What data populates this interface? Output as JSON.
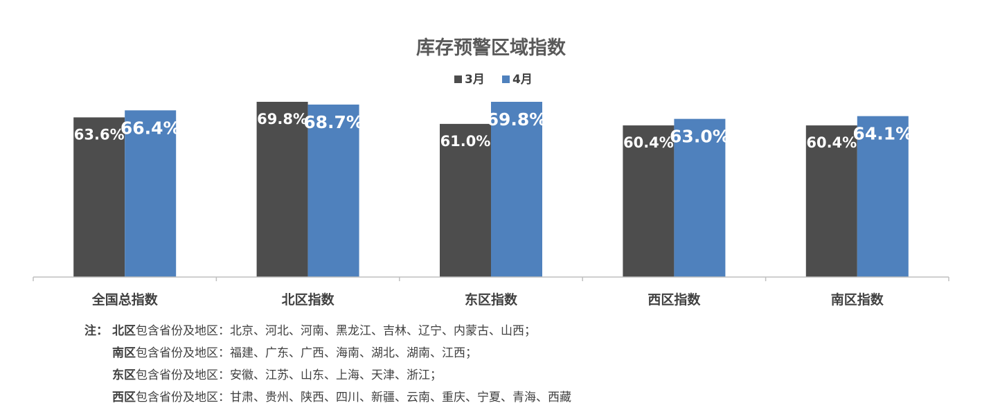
{
  "chart_data": {
    "type": "bar",
    "title": "库存预警区域指数",
    "categories": [
      "全国总指数",
      "北区指数",
      "东区指数",
      "西区指数",
      "南区指数"
    ],
    "series": [
      {
        "name": "3月",
        "values": [
          63.6,
          69.8,
          61.0,
          60.4,
          60.4
        ],
        "labels": [
          "63.6%",
          "69.8%",
          "61.0%",
          "60.4%",
          "60.4%"
        ],
        "color": "#4d4d4d"
      },
      {
        "name": "4月",
        "values": [
          66.4,
          68.7,
          69.8,
          63.0,
          64.1
        ],
        "labels": [
          "66.4%",
          "68.7%",
          "69.8%",
          "63.0%",
          "64.1%"
        ],
        "color": "#4f81bd"
      }
    ],
    "unit": "%",
    "legend": "top-center",
    "grid": false
  },
  "notes": {
    "prefix": "注：",
    "items": [
      {
        "region": "北区",
        "text": "包含省份及地区：北京、河北、河南、黑龙江、吉林、辽宁、内蒙古、山西；"
      },
      {
        "region": "南区",
        "text": "包含省份及地区：福建、广东、广西、海南、湖北、湖南、江西；"
      },
      {
        "region": "东区",
        "text": "包含省份及地区：安徽、江苏、山东、上海、天津、浙江；"
      },
      {
        "region": "西区",
        "text": "包含省份及地区：甘肃、贵州、陕西、四川、新疆、云南、重庆、宁夏、青海、西藏"
      }
    ]
  }
}
